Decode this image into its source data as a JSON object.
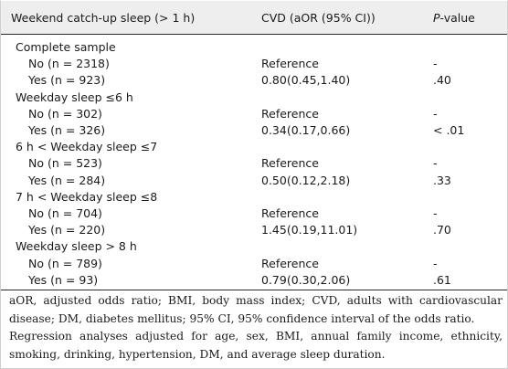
{
  "header": {
    "col1": "Weekend catch-up sleep (> 1 h)",
    "col2": "CVD (aOR (95% CI))",
    "col3_italic": "P",
    "col3_rest": "-value"
  },
  "groups": [
    {
      "label": "Complete sample",
      "rows": [
        {
          "label": "No (n = 2318)",
          "aor": "Reference",
          "p": "-"
        },
        {
          "label": "Yes (n = 923)",
          "aor": "0.80(0.45,1.40)",
          "p": ".40"
        }
      ]
    },
    {
      "label": "Weekday sleep ≤6 h",
      "rows": [
        {
          "label": "No (n = 302)",
          "aor": "Reference",
          "p": "-"
        },
        {
          "label": "Yes (n = 326)",
          "aor": "0.34(0.17,0.66)",
          "p": "< .01"
        }
      ]
    },
    {
      "label": "6 h  < Weekday sleep ≤7",
      "rows": [
        {
          "label": "No (n = 523)",
          "aor": "Reference",
          "p": "-"
        },
        {
          "label": "Yes (n = 284)",
          "aor": "0.50(0.12,2.18)",
          "p": ".33"
        }
      ]
    },
    {
      "label": "7 h  < Weekday sleep ≤8",
      "rows": [
        {
          "label": "No (n = 704)",
          "aor": "Reference",
          "p": "-"
        },
        {
          "label": "Yes (n = 220)",
          "aor": "1.45(0.19,11.01)",
          "p": ".70"
        }
      ]
    },
    {
      "label": "Weekday sleep  > 8 h",
      "rows": [
        {
          "label": "No (n = 789)",
          "aor": "Reference",
          "p": "-"
        },
        {
          "label": "Yes (n = 93)",
          "aor": "0.79(0.30,2.06)",
          "p": ".61"
        }
      ]
    }
  ],
  "notes": {
    "abbreviations": "aOR, adjusted odds ratio; BMI, body mass index; CVD, adults with cardiovascular disease; DM, diabetes mellitus; 95% CI, 95% confidence interval of the odds ratio.",
    "adjustment": "Regression analyses adjusted for age, sex, BMI, annual family income, ethnicity, smoking, drinking, hypertension, DM, and average sleep duration."
  }
}
